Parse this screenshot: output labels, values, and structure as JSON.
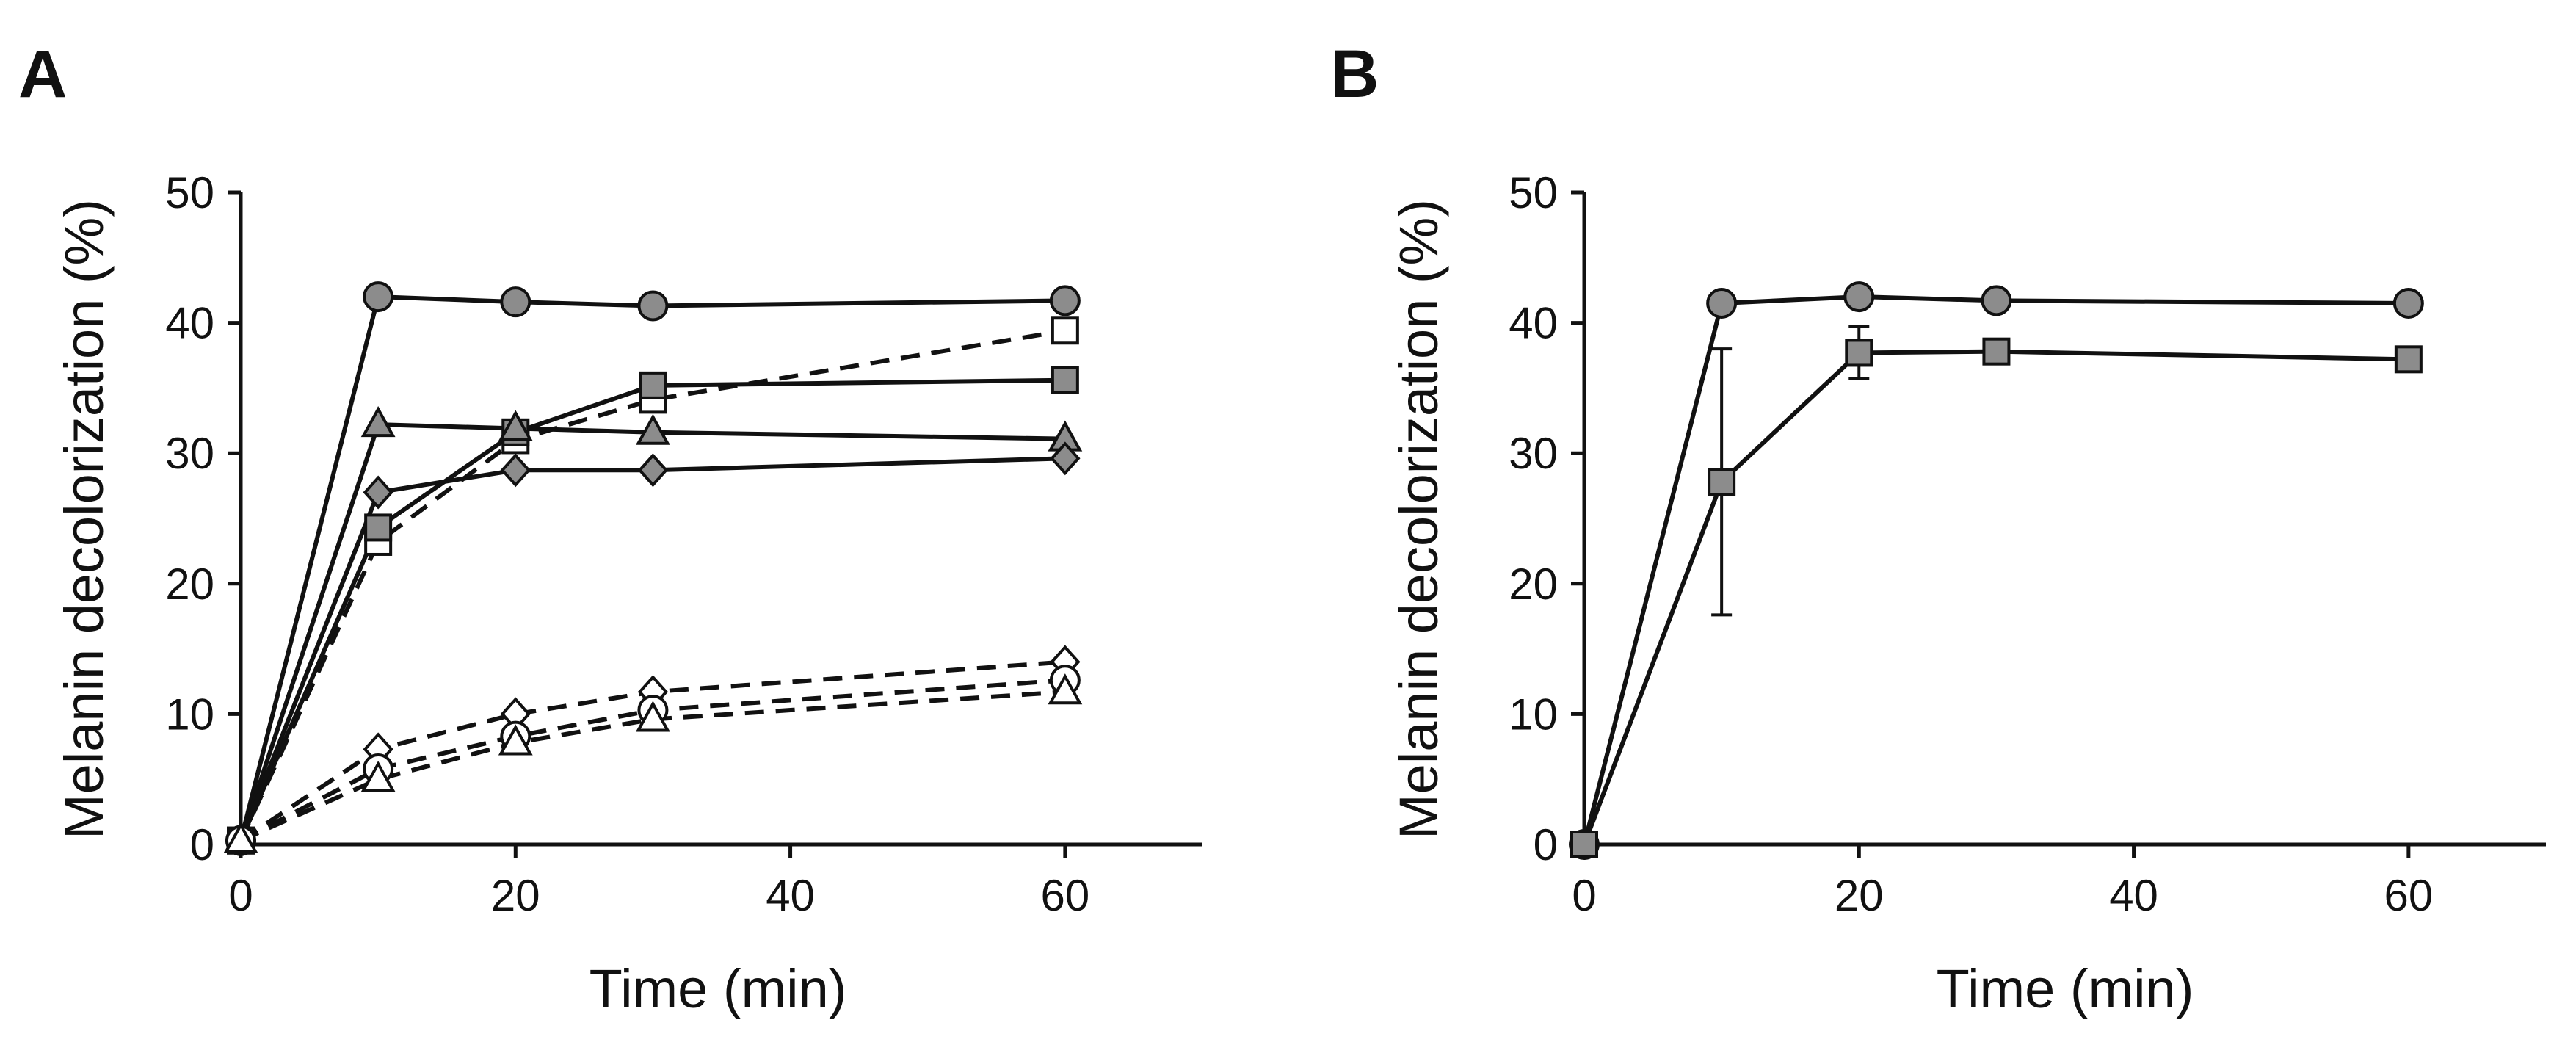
{
  "chart_data": [
    {
      "panel": "A",
      "type": "line",
      "xlabel": "Time (min)",
      "ylabel": "Melanin decolorization (%)",
      "xlim": [
        0,
        70
      ],
      "ylim": [
        0,
        50
      ],
      "xticks": [
        0,
        20,
        40,
        60
      ],
      "yticks": [
        0,
        10,
        20,
        30,
        40,
        50
      ],
      "x": [
        0,
        10,
        20,
        30,
        60
      ],
      "series": [
        {
          "name": "filled circle",
          "marker": "circle",
          "fill": "#8c8c8c",
          "dashed": false,
          "values": [
            0.3,
            42.0,
            41.6,
            41.3,
            41.7
          ]
        },
        {
          "name": "open square",
          "marker": "square",
          "fill": "#ffffff",
          "dashed": true,
          "values": [
            0.3,
            23.2,
            31.0,
            34.1,
            39.4
          ]
        },
        {
          "name": "filled square",
          "marker": "square",
          "fill": "#8c8c8c",
          "dashed": false,
          "values": [
            0.3,
            24.3,
            31.6,
            35.2,
            35.6
          ]
        },
        {
          "name": "filled triangle",
          "marker": "triangle",
          "fill": "#8c8c8c",
          "dashed": false,
          "values": [
            0.3,
            32.2,
            31.9,
            31.6,
            31.1
          ]
        },
        {
          "name": "filled diamond",
          "marker": "diamond",
          "fill": "#8c8c8c",
          "dashed": false,
          "values": [
            0.3,
            27.0,
            28.7,
            28.7,
            29.6
          ]
        },
        {
          "name": "open diamond",
          "marker": "diamond",
          "fill": "#ffffff",
          "dashed": true,
          "values": [
            0.3,
            7.3,
            10.0,
            11.7,
            14.0
          ]
        },
        {
          "name": "open circle",
          "marker": "circle",
          "fill": "#ffffff",
          "dashed": true,
          "values": [
            0.3,
            5.8,
            8.3,
            10.3,
            12.6
          ]
        },
        {
          "name": "open triangle",
          "marker": "triangle",
          "fill": "#ffffff",
          "dashed": true,
          "values": [
            0.3,
            5.0,
            7.8,
            9.6,
            11.7
          ]
        }
      ]
    },
    {
      "panel": "B",
      "type": "line",
      "xlabel": "Time (min)",
      "ylabel": "Melanin decolorization (%)",
      "xlim": [
        0,
        70
      ],
      "ylim": [
        0,
        50
      ],
      "xticks": [
        0,
        20,
        40,
        60
      ],
      "yticks": [
        0,
        10,
        20,
        30,
        40,
        50
      ],
      "x": [
        0,
        10,
        20,
        30,
        60
      ],
      "series": [
        {
          "name": "filled circle",
          "marker": "circle",
          "fill": "#8c8c8c",
          "dashed": false,
          "values": [
            0,
            41.5,
            42.0,
            41.7,
            41.5
          ]
        },
        {
          "name": "filled square",
          "marker": "square",
          "fill": "#8c8c8c",
          "dashed": false,
          "values": [
            0,
            27.8,
            37.7,
            37.8,
            37.2
          ],
          "errors": [
            0,
            10.2,
            2.0,
            0.6,
            0.5
          ]
        }
      ]
    }
  ]
}
